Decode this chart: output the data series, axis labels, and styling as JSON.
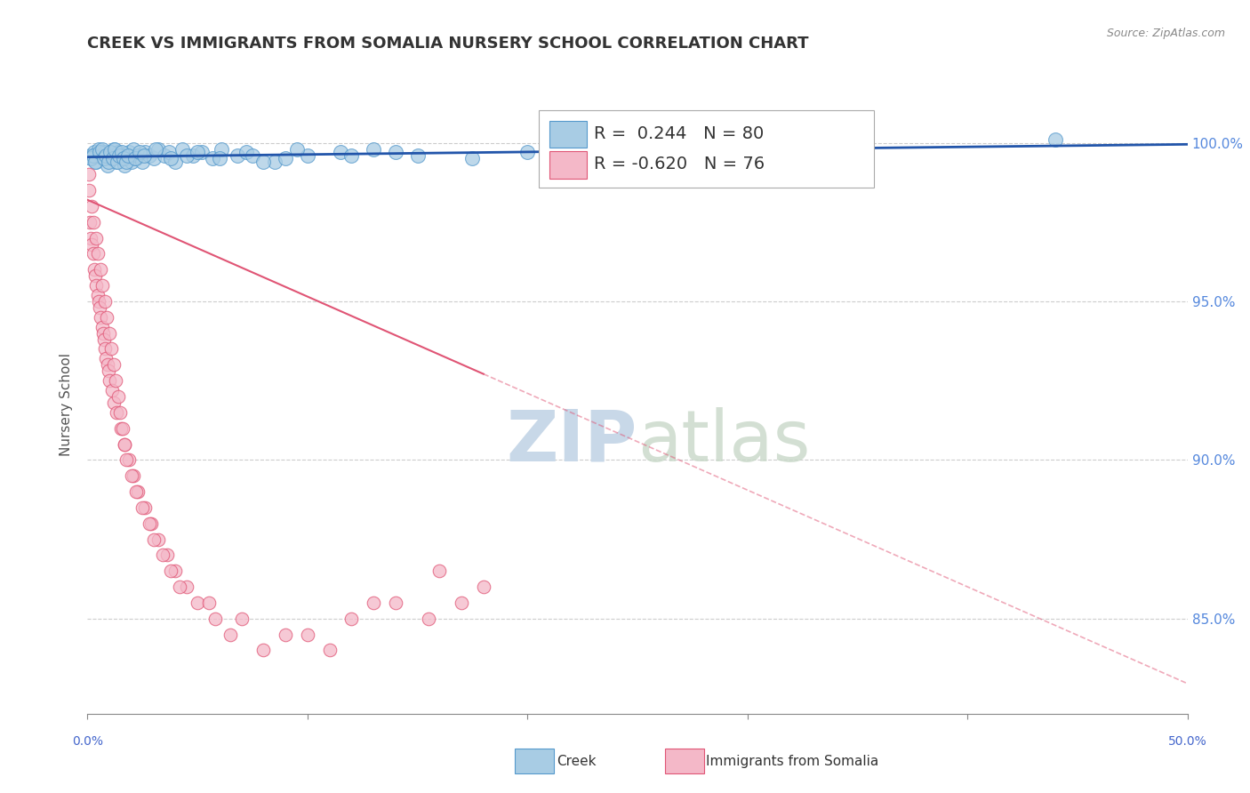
{
  "title": "CREEK VS IMMIGRANTS FROM SOMALIA NURSERY SCHOOL CORRELATION CHART",
  "source_text": "Source: ZipAtlas.com",
  "ylabel": "Nursery School",
  "xlim": [
    0.0,
    50.0
  ],
  "ylim": [
    82.0,
    101.5
  ],
  "creek_color": "#a8cce4",
  "somalia_color": "#f4b8c8",
  "creek_edge_color": "#5599cc",
  "somalia_edge_color": "#e05575",
  "blue_line_color": "#2255aa",
  "pink_line_color": "#e05575",
  "grid_color": "#cccccc",
  "background_color": "#ffffff",
  "watermark_zip": "ZIP",
  "watermark_atlas": "atlas",
  "watermark_color": "#c8d8e8",
  "creek_R": 0.244,
  "creek_N": 80,
  "somalia_R": -0.62,
  "somalia_N": 76,
  "title_fontsize": 13,
  "axis_label_fontsize": 11,
  "legend_fontsize": 13,
  "y_tick_positions": [
    85.0,
    90.0,
    95.0,
    100.0
  ],
  "y_tick_labels": [
    "85.0%",
    "90.0%",
    "95.0%",
    "100.0%"
  ],
  "blue_slope": 0.008,
  "blue_intercept": 99.55,
  "pink_slope": -0.305,
  "pink_intercept": 98.2,
  "creek_scatter_x": [
    0.1,
    0.2,
    0.3,
    0.4,
    0.5,
    0.6,
    0.7,
    0.8,
    0.9,
    1.0,
    1.1,
    1.2,
    1.3,
    1.4,
    1.5,
    1.6,
    1.7,
    1.8,
    1.9,
    2.0,
    2.1,
    2.2,
    2.3,
    2.5,
    2.6,
    2.8,
    3.0,
    3.2,
    3.5,
    3.7,
    4.0,
    4.3,
    4.8,
    5.2,
    5.7,
    6.1,
    6.8,
    7.2,
    8.5,
    9.0,
    10.0,
    11.5,
    13.0,
    15.0,
    17.5,
    20.0,
    23.0,
    27.0,
    32.0,
    44.0,
    0.15,
    0.25,
    0.35,
    0.55,
    0.65,
    0.75,
    0.85,
    0.95,
    1.05,
    1.15,
    1.25,
    1.35,
    1.45,
    1.55,
    1.65,
    1.75,
    1.85,
    2.15,
    2.35,
    2.55,
    3.1,
    3.8,
    4.5,
    5.0,
    6.0,
    7.5,
    8.0,
    9.5,
    12.0,
    14.0
  ],
  "creek_scatter_y": [
    99.6,
    99.5,
    99.7,
    99.4,
    99.8,
    99.6,
    99.5,
    99.7,
    99.3,
    99.6,
    99.5,
    99.8,
    99.4,
    99.7,
    99.6,
    99.5,
    99.3,
    99.6,
    99.7,
    99.4,
    99.8,
    99.5,
    99.6,
    99.4,
    99.7,
    99.6,
    99.5,
    99.8,
    99.6,
    99.7,
    99.4,
    99.8,
    99.6,
    99.7,
    99.5,
    99.8,
    99.6,
    99.7,
    99.4,
    99.5,
    99.6,
    99.7,
    99.8,
    99.6,
    99.5,
    99.7,
    99.8,
    99.6,
    99.7,
    100.1,
    99.5,
    99.6,
    99.4,
    99.7,
    99.8,
    99.5,
    99.6,
    99.4,
    99.7,
    99.5,
    99.8,
    99.4,
    99.6,
    99.7,
    99.5,
    99.4,
    99.6,
    99.5,
    99.7,
    99.6,
    99.8,
    99.5,
    99.6,
    99.7,
    99.5,
    99.6,
    99.4,
    99.8,
    99.6,
    99.7
  ],
  "somalia_scatter_x": [
    0.05,
    0.1,
    0.15,
    0.2,
    0.25,
    0.3,
    0.35,
    0.4,
    0.45,
    0.5,
    0.55,
    0.6,
    0.65,
    0.7,
    0.75,
    0.8,
    0.85,
    0.9,
    0.95,
    1.0,
    1.1,
    1.2,
    1.3,
    1.5,
    1.7,
    1.9,
    2.1,
    2.3,
    2.6,
    2.9,
    3.2,
    3.6,
    4.0,
    4.5,
    5.0,
    5.8,
    6.5,
    8.0,
    10.0,
    12.0,
    0.08,
    0.18,
    0.28,
    0.38,
    0.48,
    0.58,
    0.68,
    0.78,
    0.88,
    0.98,
    1.08,
    1.18,
    1.28,
    1.38,
    1.48,
    1.58,
    1.68,
    1.78,
    2.0,
    2.2,
    2.5,
    2.8,
    3.0,
    3.4,
    3.8,
    4.2,
    5.5,
    7.0,
    9.0,
    11.0,
    13.0,
    15.5,
    17.0,
    18.0,
    16.0,
    14.0
  ],
  "somalia_scatter_y": [
    98.5,
    97.5,
    97.0,
    96.8,
    96.5,
    96.0,
    95.8,
    95.5,
    95.2,
    95.0,
    94.8,
    94.5,
    94.2,
    94.0,
    93.8,
    93.5,
    93.2,
    93.0,
    92.8,
    92.5,
    92.2,
    91.8,
    91.5,
    91.0,
    90.5,
    90.0,
    89.5,
    89.0,
    88.5,
    88.0,
    87.5,
    87.0,
    86.5,
    86.0,
    85.5,
    85.0,
    84.5,
    84.0,
    84.5,
    85.0,
    99.0,
    98.0,
    97.5,
    97.0,
    96.5,
    96.0,
    95.5,
    95.0,
    94.5,
    94.0,
    93.5,
    93.0,
    92.5,
    92.0,
    91.5,
    91.0,
    90.5,
    90.0,
    89.5,
    89.0,
    88.5,
    88.0,
    87.5,
    87.0,
    86.5,
    86.0,
    85.5,
    85.0,
    84.5,
    84.0,
    85.5,
    85.0,
    85.5,
    86.0,
    86.5,
    85.5
  ]
}
